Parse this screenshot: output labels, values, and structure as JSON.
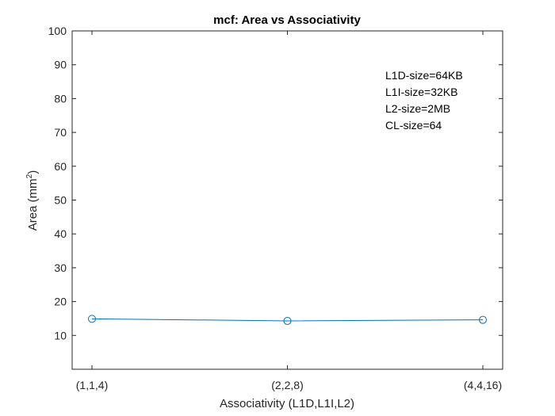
{
  "chart_data": {
    "type": "line",
    "title": "mcf: Area vs Associativity",
    "xlabel": "Associativity (L1D,L1I,L2)",
    "ylabel_main": "Area (mm",
    "ylabel_sup": "2",
    "ylabel_end": ")",
    "categories": [
      "(1,1,4)",
      "(2,2,8)",
      "(4,4,16)"
    ],
    "series": [
      {
        "values": [
          14.9,
          14.3,
          14.6
        ],
        "color": "#0072BD",
        "marker": "circle"
      }
    ],
    "ylim": [
      0,
      100
    ],
    "yticks": [
      10,
      20,
      30,
      40,
      50,
      60,
      70,
      80,
      90,
      100
    ],
    "grid": false,
    "annotations": [
      "L1D-size=64KB",
      "L1I-size=32KB",
      "L2-size=2MB",
      "CL-size=64"
    ]
  }
}
